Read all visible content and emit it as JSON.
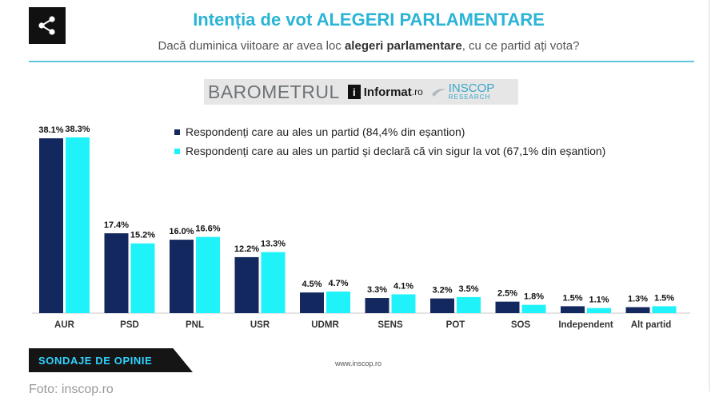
{
  "header": {
    "title": "Intenția de vot ALEGERI PARLAMENTARE",
    "subtitle_pre": "Dacă duminica viitoare ar avea loc ",
    "subtitle_bold": "alegeri parlamentare",
    "subtitle_post": ", cu ce partid ați vota?",
    "share_icon": "share-icon"
  },
  "brand": {
    "barometrul": "BAROMETRUL",
    "informat": "Informat",
    "informat_suffix": ".ro",
    "inscop": "INSCOP",
    "inscop_sub": "RESEARCH"
  },
  "footer": {
    "tag": "SONDAJE DE OPINIE",
    "website": "www.inscop.ro",
    "credit": "Foto: inscop.ro"
  },
  "chart_data": {
    "type": "bar",
    "title": "Intenția de vot ALEGERI PARLAMENTARE",
    "categories": [
      "AUR",
      "PSD",
      "PNL",
      "USR",
      "UDMR",
      "SENS",
      "POT",
      "SOS",
      "Independent",
      "Alt partid"
    ],
    "series": [
      {
        "name": "Respondenți care au ales un partid (84,4% din eșantion)",
        "color": "#13285e",
        "values": [
          38.1,
          17.4,
          16.0,
          12.2,
          4.5,
          3.3,
          3.2,
          2.5,
          1.5,
          1.3
        ],
        "labels": [
          "38.1%",
          "17.4%",
          "16.0%",
          "12.2%",
          "4.5%",
          "3.3%",
          "3.2%",
          "2.5%",
          "1.5%",
          "1.3%"
        ]
      },
      {
        "name": "Respondenți care au ales un partid și declară că vin sigur la vot (67,1% din eșantion)",
        "color": "#1ff2f8",
        "values": [
          38.3,
          15.2,
          16.6,
          13.3,
          4.7,
          4.1,
          3.5,
          1.8,
          1.1,
          1.5
        ],
        "labels": [
          "38.3%",
          "15.2%",
          "16.6%",
          "13.3%",
          "4.7%",
          "4.1%",
          "3.5%",
          "1.8%",
          "1.1%",
          "1.5%"
        ]
      }
    ],
    "ylim": [
      0,
      40
    ],
    "grid": false,
    "legend": "top-right"
  }
}
